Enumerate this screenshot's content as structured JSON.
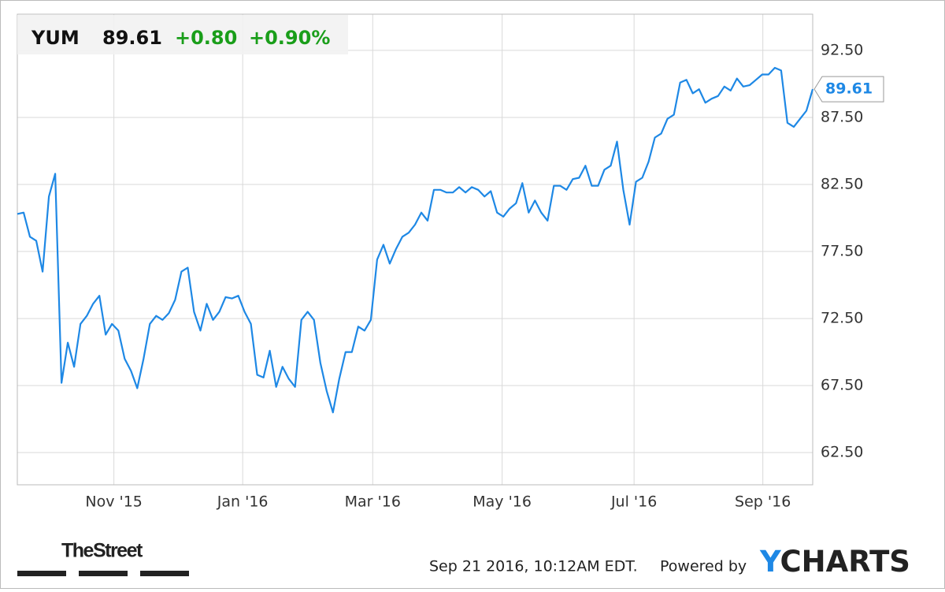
{
  "chart_data": {
    "type": "line",
    "ticker": "YUM",
    "price": 89.61,
    "change": "+0.80",
    "change_pct": "+0.90%",
    "timestamp": "Sep 21 2016, 10:12AM EDT.",
    "powered_by": "Powered by",
    "brand": "YCHARTS",
    "publisher": "TheStreet",
    "x": [
      0,
      1,
      2,
      3,
      4,
      5,
      6,
      7,
      8,
      9,
      10,
      11,
      12,
      13,
      14,
      15,
      16,
      17,
      18,
      19,
      20,
      21,
      22,
      23,
      24,
      25,
      26,
      27,
      28,
      29,
      30,
      31,
      32,
      33,
      34,
      35,
      36,
      37,
      38,
      39,
      40,
      41,
      42,
      43,
      44,
      45,
      46,
      47,
      48,
      49,
      50,
      51,
      52,
      53,
      54,
      55,
      56,
      57,
      58,
      59,
      60,
      61,
      62,
      63,
      64,
      65,
      66,
      67,
      68,
      69,
      70,
      71,
      72,
      73,
      74,
      75,
      76,
      77,
      78,
      79,
      80,
      81,
      82,
      83,
      84,
      85,
      86,
      87,
      88,
      89,
      90,
      91,
      92,
      93,
      94,
      95,
      96,
      97,
      98,
      99,
      100,
      101,
      102,
      103,
      104,
      105,
      106,
      107,
      108,
      109,
      110,
      111,
      112,
      113,
      114,
      115,
      116,
      117,
      118,
      119,
      120,
      121,
      122,
      123,
      124,
      125,
      126
    ],
    "series": [
      {
        "name": "YUM",
        "color": "#1e88e5",
        "values": [
          80.3,
          80.4,
          78.6,
          78.3,
          76.0,
          81.6,
          83.3,
          67.7,
          70.7,
          68.9,
          72.1,
          72.7,
          73.6,
          74.2,
          71.3,
          72.1,
          71.6,
          69.5,
          68.6,
          67.3,
          69.5,
          72.1,
          72.7,
          72.4,
          72.9,
          73.9,
          76.0,
          76.3,
          73.0,
          71.6,
          73.6,
          72.4,
          73.0,
          74.1,
          74.0,
          74.2,
          73.0,
          72.1,
          68.3,
          68.1,
          70.1,
          67.4,
          68.9,
          68.0,
          67.4,
          72.4,
          73.0,
          72.4,
          69.2,
          67.1,
          65.5,
          68.0,
          70.0,
          70.0,
          71.9,
          71.6,
          72.4,
          76.9,
          78.0,
          76.6,
          77.7,
          78.6,
          78.9,
          79.5,
          80.4,
          79.8,
          82.1,
          82.1,
          81.9,
          81.9,
          82.3,
          81.9,
          82.3,
          82.1,
          81.6,
          82.0,
          80.4,
          80.1,
          80.7,
          81.1,
          82.6,
          80.4,
          81.3,
          80.4,
          79.8,
          82.4,
          82.4,
          82.1,
          82.9,
          83.0,
          83.9,
          82.4,
          82.4,
          83.6,
          83.9,
          85.7,
          82.1,
          79.5,
          82.7,
          83.0,
          84.2,
          86.0,
          86.3,
          87.4,
          87.7,
          90.1,
          90.3,
          89.3,
          89.6,
          88.6,
          88.9,
          89.1,
          89.8,
          89.5,
          90.4,
          89.8,
          89.9,
          90.3,
          90.7,
          90.7,
          91.2,
          91.0,
          87.1,
          86.8,
          87.4,
          88.0,
          89.61
        ]
      }
    ],
    "xlim": [
      0,
      126
    ],
    "xticks": [
      {
        "value": 15.3,
        "label": "Nov '15"
      },
      {
        "value": 35.7,
        "label": "Jan '16"
      },
      {
        "value": 56.3,
        "label": "Mar '16"
      },
      {
        "value": 76.8,
        "label": "May '16"
      },
      {
        "value": 97.7,
        "label": "Jul '16"
      },
      {
        "value": 118.1,
        "label": "Sep '16"
      }
    ],
    "ylim": [
      60.1,
      95.2
    ],
    "yticks": [
      {
        "value": 62.5,
        "label": "62.50"
      },
      {
        "value": 67.5,
        "label": "67.50"
      },
      {
        "value": 72.5,
        "label": "72.50"
      },
      {
        "value": 77.5,
        "label": "77.50"
      },
      {
        "value": 82.5,
        "label": "82.50"
      },
      {
        "value": 87.5,
        "label": "87.50"
      },
      {
        "value": 92.5,
        "label": "92.50"
      }
    ],
    "grid": true
  }
}
